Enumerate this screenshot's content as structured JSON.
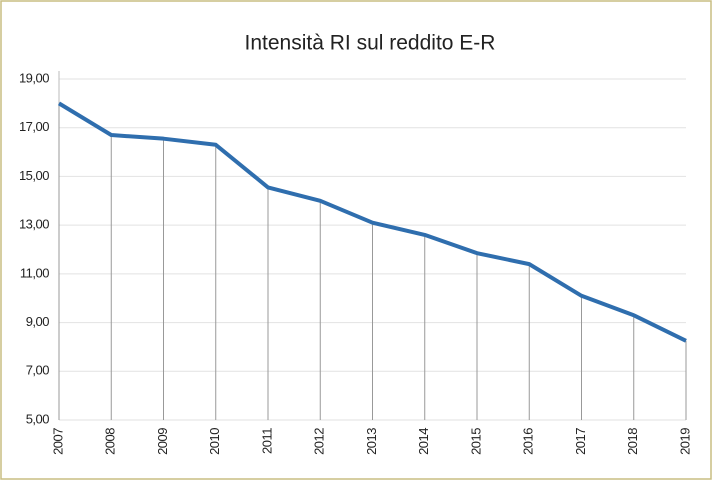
{
  "chart_data": {
    "type": "line",
    "title": "Intensità RI sul reddito E-R",
    "categories": [
      "2007",
      "2008",
      "2009",
      "2010",
      "2011",
      "2012",
      "2013",
      "2014",
      "2015",
      "2016",
      "2017",
      "2018",
      "2019"
    ],
    "series": [
      {
        "name": "Intensità RI",
        "color": "#2f6eae",
        "values": [
          18.0,
          16.7,
          16.55,
          16.3,
          14.55,
          14.0,
          13.1,
          12.6,
          11.85,
          11.4,
          10.1,
          9.3,
          8.25
        ]
      }
    ],
    "ylim": [
      5,
      19
    ],
    "yticks": [
      {
        "value": 5,
        "label": "5,00"
      },
      {
        "value": 7,
        "label": "7,00"
      },
      {
        "value": 9,
        "label": "9,00"
      },
      {
        "value": 11,
        "label": "11,00"
      },
      {
        "value": 13,
        "label": "13,00"
      },
      {
        "value": 15,
        "label": "15,00"
      },
      {
        "value": 17,
        "label": "17,00"
      },
      {
        "value": 19,
        "label": "19,00"
      }
    ],
    "grid": true,
    "drop_lines": true
  }
}
